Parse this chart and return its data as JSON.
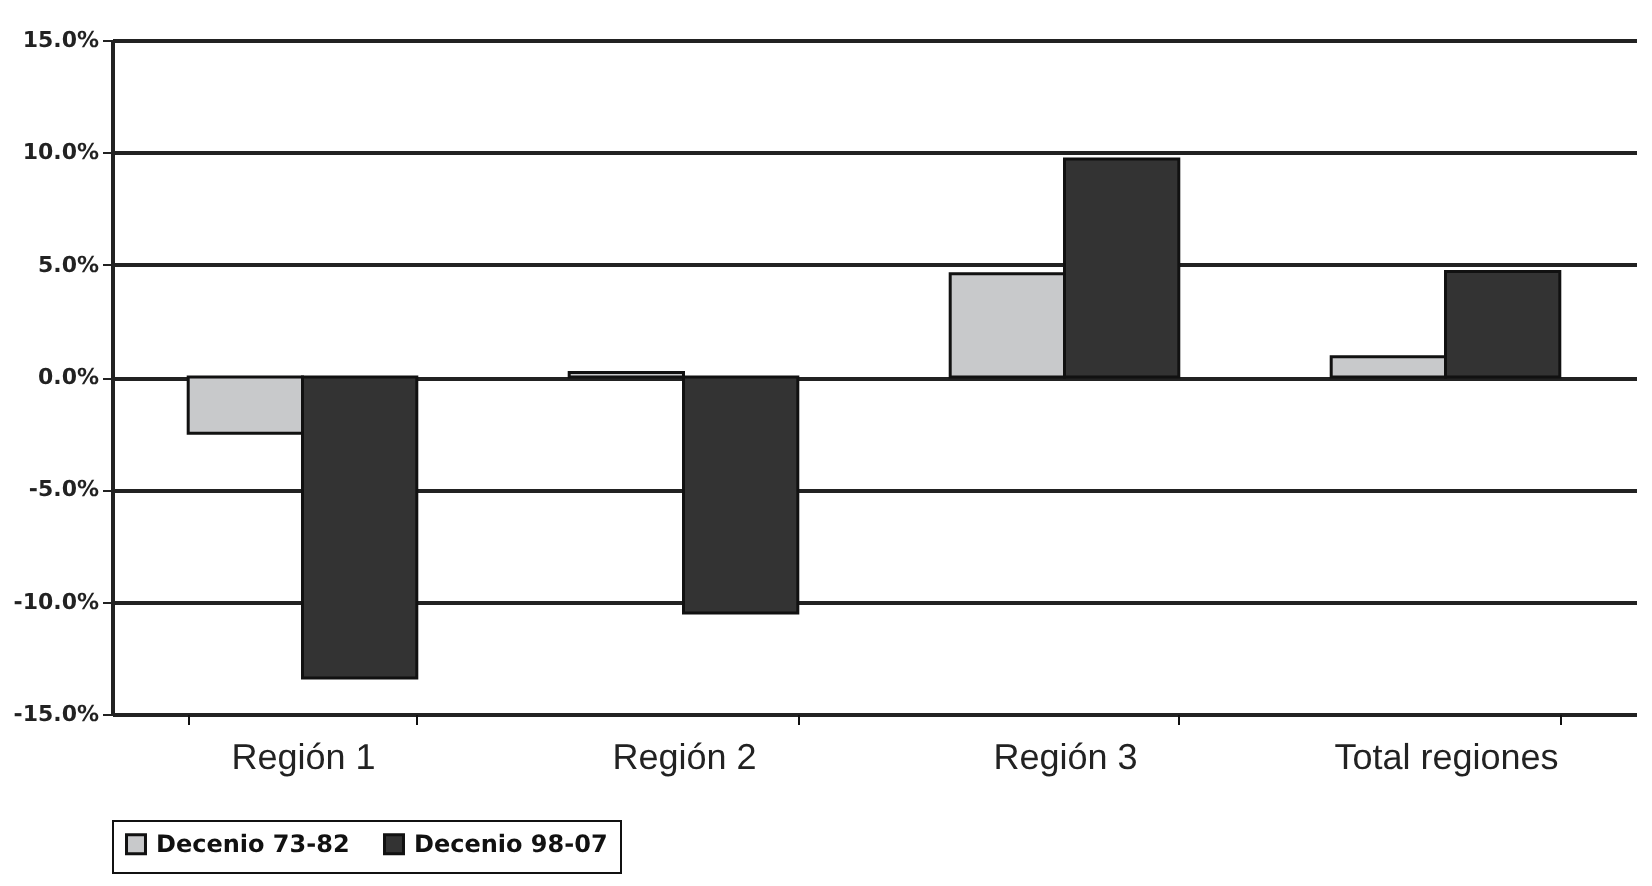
{
  "chart_data": {
    "type": "bar",
    "categories": [
      "Región 1",
      "Región 2",
      "Región 3",
      "Total regiones"
    ],
    "series": [
      {
        "name": "Decenio 73-82",
        "color": "#c8c9cb",
        "values": [
          -2.5,
          0.2,
          4.6,
          0.9
        ]
      },
      {
        "name": "Decenio 98-07",
        "color": "#333333",
        "values": [
          -13.4,
          -10.5,
          9.7,
          4.7
        ]
      }
    ],
    "ylim": [
      -15,
      15
    ],
    "yticks": [
      {
        "value": -15,
        "label": "-15.0%"
      },
      {
        "value": -10,
        "label": "-10.0%"
      },
      {
        "value": -5,
        "label": "-5.0%"
      },
      {
        "value": 0,
        "label": "0.0%"
      },
      {
        "value": 5,
        "label": "5.0%"
      },
      {
        "value": 10,
        "label": "10.0%"
      },
      {
        "value": 15,
        "label": "15.0%"
      }
    ],
    "grid": "y",
    "legend": "bottom"
  }
}
